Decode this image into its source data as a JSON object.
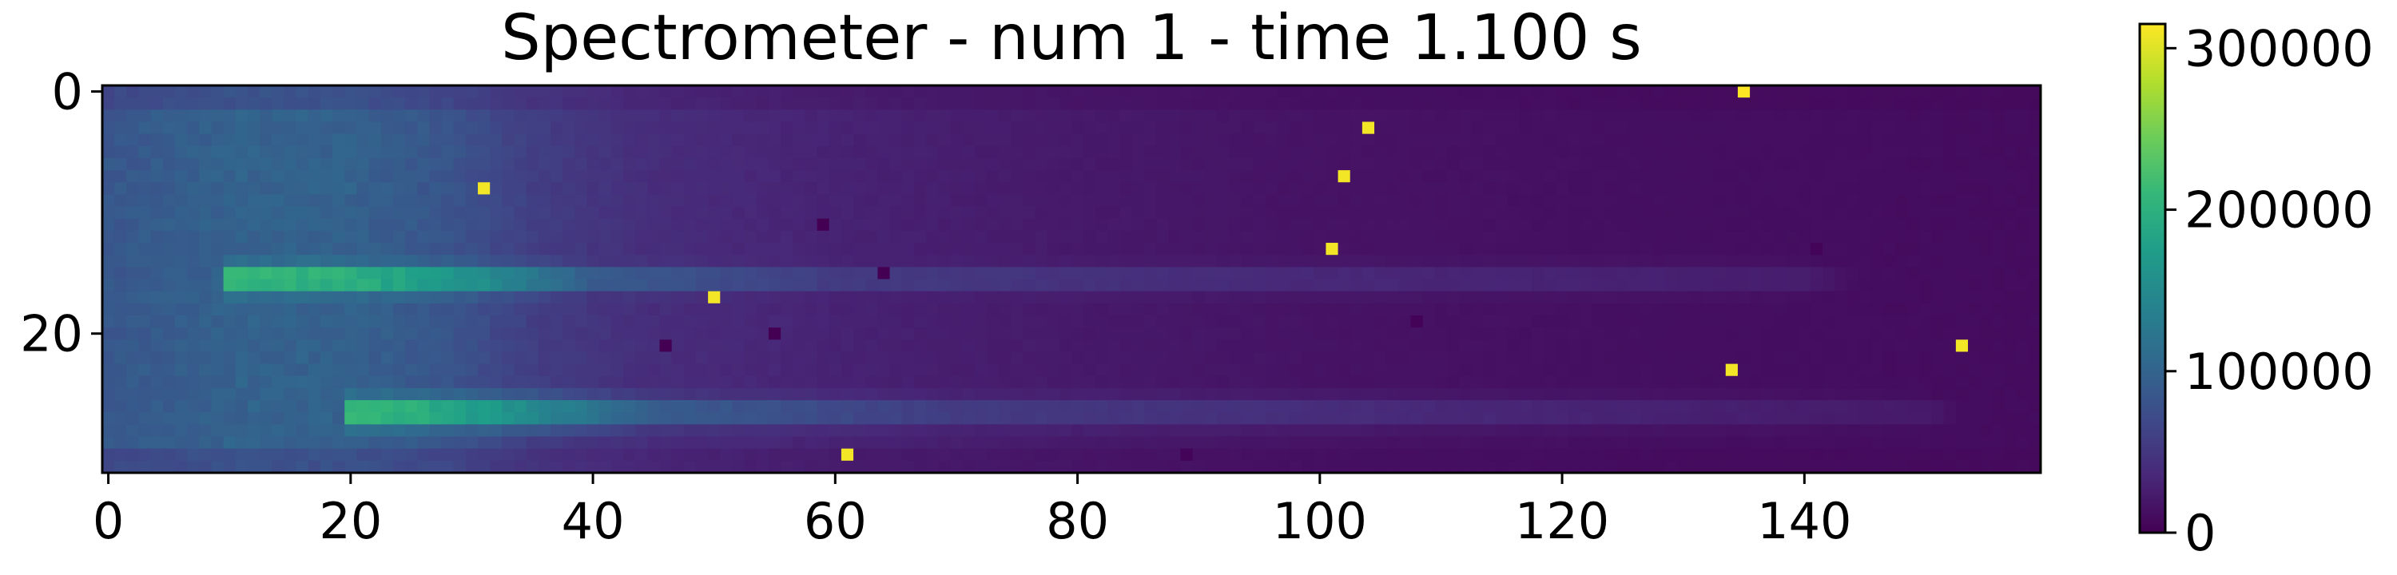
{
  "chart_data": {
    "type": "heatmap",
    "title": "Spectrometer - num 1 - time 1.100 s",
    "xlabel": "",
    "ylabel": "",
    "columns": 160,
    "rows": 32,
    "x_ticks": [
      0,
      20,
      40,
      60,
      80,
      100,
      120,
      140
    ],
    "y_ticks": [
      0,
      20
    ],
    "xlim": [
      -0.5,
      159.5
    ],
    "ylim": [
      31.5,
      -0.5
    ],
    "colormap": "viridis",
    "value_range": [
      0,
      315000
    ],
    "colorbar": {
      "ticks": [
        0,
        100000,
        200000,
        300000
      ]
    },
    "background": [
      {
        "x": 0,
        "value": 85000
      },
      {
        "x": 10,
        "value": 98000
      },
      {
        "x": 20,
        "value": 97000
      },
      {
        "x": 28,
        "value": 82000
      },
      {
        "x": 35,
        "value": 58000
      },
      {
        "x": 45,
        "value": 40000
      },
      {
        "x": 60,
        "value": 30000
      },
      {
        "x": 80,
        "value": 22000
      },
      {
        "x": 100,
        "value": 16000
      },
      {
        "x": 130,
        "value": 12000
      },
      {
        "x": 159,
        "value": 10000
      }
    ],
    "bands": [
      {
        "rows": [
          15,
          16
        ],
        "profile": [
          {
            "x": 8,
            "value": 0
          },
          {
            "x": 10,
            "value": 205000
          },
          {
            "x": 20,
            "value": 198000
          },
          {
            "x": 30,
            "value": 160000
          },
          {
            "x": 40,
            "value": 90000
          },
          {
            "x": 60,
            "value": 55000
          },
          {
            "x": 100,
            "value": 35000
          },
          {
            "x": 140,
            "value": 25000
          },
          {
            "x": 148,
            "value": 0
          }
        ]
      },
      {
        "rows": [
          26,
          27
        ],
        "profile": [
          {
            "x": 19,
            "value": 0
          },
          {
            "x": 20,
            "value": 205000
          },
          {
            "x": 25,
            "value": 200000
          },
          {
            "x": 35,
            "value": 150000
          },
          {
            "x": 45,
            "value": 90000
          },
          {
            "x": 70,
            "value": 55000
          },
          {
            "x": 110,
            "value": 35000
          },
          {
            "x": 150,
            "value": 22000
          },
          {
            "x": 156,
            "value": 0
          }
        ]
      }
    ],
    "hot_pixels": [
      {
        "x": 135,
        "y": 0,
        "value": 315000
      },
      {
        "x": 104,
        "y": 3,
        "value": 310000
      },
      {
        "x": 102,
        "y": 7,
        "value": 310000
      },
      {
        "x": 31,
        "y": 8,
        "value": 310000
      },
      {
        "x": 101,
        "y": 13,
        "value": 310000
      },
      {
        "x": 50,
        "y": 17,
        "value": 310000
      },
      {
        "x": 153,
        "y": 21,
        "value": 310000
      },
      {
        "x": 134,
        "y": 23,
        "value": 310000
      },
      {
        "x": 61,
        "y": 30,
        "value": 310000
      }
    ],
    "cold_pixels": [
      {
        "x": 59,
        "y": 11,
        "value": 0
      },
      {
        "x": 64,
        "y": 15,
        "value": 0
      },
      {
        "x": 55,
        "y": 20,
        "value": 0
      },
      {
        "x": 46,
        "y": 21,
        "value": 0
      },
      {
        "x": 108,
        "y": 19,
        "value": 2000
      },
      {
        "x": 141,
        "y": 13,
        "value": 3000
      },
      {
        "x": 89,
        "y": 30,
        "value": 3000
      }
    ]
  }
}
